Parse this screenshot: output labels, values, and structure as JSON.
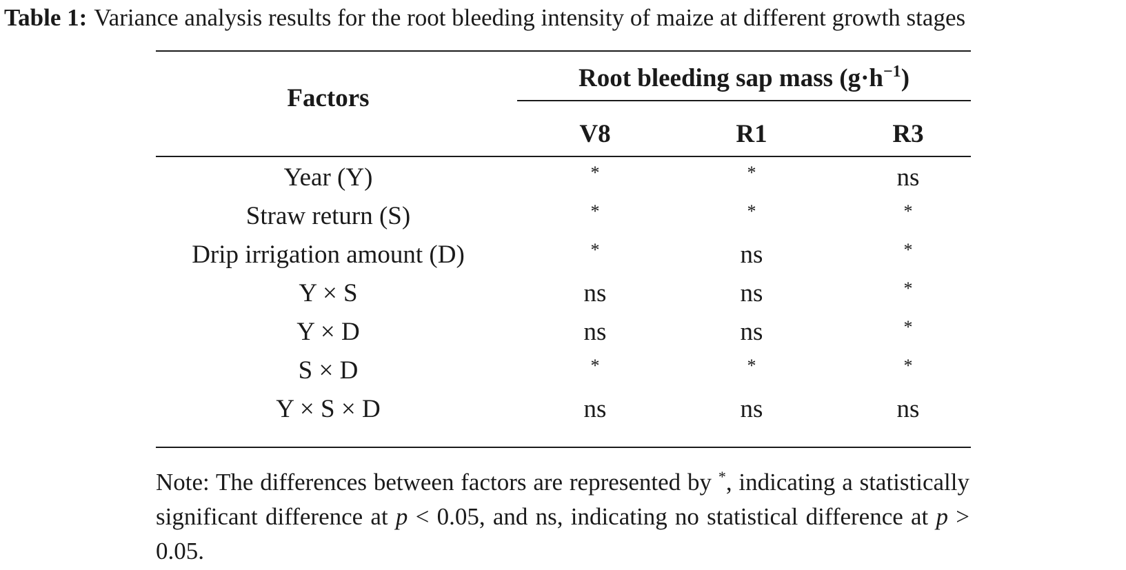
{
  "caption": {
    "label": "Table 1:",
    "text": "Variance analysis results for the root bleeding intensity of maize at different growth stages"
  },
  "table": {
    "factors_header": "Factors",
    "group_header": "Root bleeding sap mass (g·h",
    "group_header_exponent": "−1",
    "group_header_close": ")",
    "columns": [
      "V8",
      "R1",
      "R3"
    ],
    "rows": [
      {
        "factor": "Year (Y)",
        "values": [
          "*",
          "*",
          "ns"
        ]
      },
      {
        "factor": "Straw return (S)",
        "values": [
          "*",
          "*",
          "*"
        ]
      },
      {
        "factor": "Drip irrigation amount (D)",
        "values": [
          "*",
          "ns",
          "*"
        ]
      },
      {
        "factor": "Y × S",
        "values": [
          "ns",
          "ns",
          "*"
        ]
      },
      {
        "factor": "Y × D",
        "values": [
          "ns",
          "ns",
          "*"
        ]
      },
      {
        "factor": "S × D",
        "values": [
          "*",
          "*",
          "*"
        ]
      },
      {
        "factor": "Y × S × D",
        "values": [
          "ns",
          "ns",
          "ns"
        ]
      }
    ]
  },
  "note": {
    "part1": "Note: The differences between factors are represented by ",
    "symbol": "*",
    "part2": ", indicating a statistically significant difference at ",
    "p1": "p",
    "part3": " < 0.05, and ns, indicating no statistical difference at ",
    "p2": "p",
    "part4": " > 0.05."
  }
}
